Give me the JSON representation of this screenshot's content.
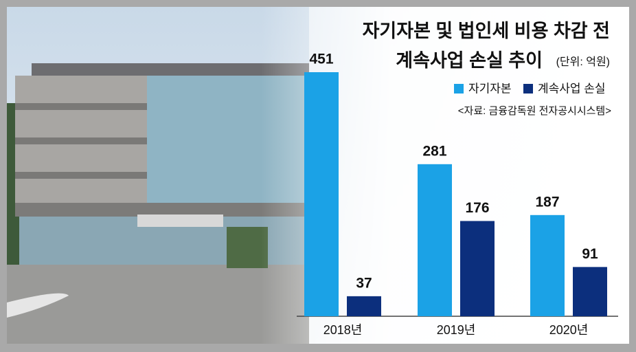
{
  "chart_data": {
    "type": "bar",
    "title": [
      "자기자본 및 법인세 비용 차감 전",
      "계속사업 손실 추이"
    ],
    "unit": "(단위: 억원)",
    "source": "<자료: 금융감독원 전자공시시스템>",
    "categories": [
      "2018년",
      "2019년",
      "2020년"
    ],
    "series": [
      {
        "name": "자기자본",
        "color": "#1ba2e6",
        "values": [
          451,
          281,
          187
        ]
      },
      {
        "name": "계속사업 손실",
        "color": "#0c2f7d",
        "values": [
          37,
          176,
          91
        ]
      }
    ]
  }
}
